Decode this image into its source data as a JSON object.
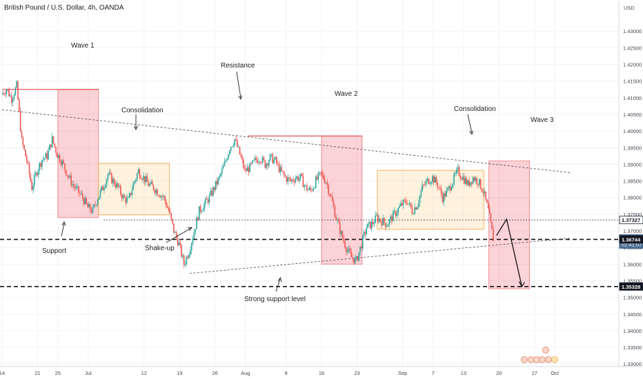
{
  "header": {
    "title": "British Pound / U.S. Dollar, 4h, OANDA",
    "currency": "USD"
  },
  "chart_data": {
    "type": "candlestick",
    "instrument": "British Pound / U.S. Dollar",
    "timeframe": "4h",
    "source": "OANDA",
    "ylim": [
      1.3275,
      1.4375
    ],
    "y_ticks": [
      "1.43000",
      "1.42500",
      "1.42000",
      "1.41500",
      "1.41000",
      "1.40500",
      "1.40000",
      "1.39500",
      "1.39000",
      "1.38500",
      "1.38000",
      "1.37500",
      "1.37000",
      "1.36500",
      "1.36000",
      "1.35500",
      "1.35000",
      "1.34500",
      "1.34000",
      "1.33500",
      "1.33000"
    ],
    "x_ticks": [
      {
        "label": "14",
        "day": 0
      },
      {
        "label": "21",
        "day": 7
      },
      {
        "label": "25",
        "day": 11
      },
      {
        "label": "Jul",
        "day": 17
      },
      {
        "label": "12",
        "day": 28
      },
      {
        "label": "19",
        "day": 35
      },
      {
        "label": "26",
        "day": 42
      },
      {
        "label": "Aug",
        "day": 48
      },
      {
        "label": "9",
        "day": 56
      },
      {
        "label": "16",
        "day": 63
      },
      {
        "label": "23",
        "day": 70
      },
      {
        "label": "Sep",
        "day": 79
      },
      {
        "label": "7",
        "day": 85
      },
      {
        "label": "13",
        "day": 91
      },
      {
        "label": "20",
        "day": 98
      },
      {
        "label": "27",
        "day": 105
      },
      {
        "label": "Oct",
        "day": 109
      }
    ],
    "price_labels": [
      {
        "value": "1.37327",
        "price": 1.37327,
        "color": "#ffffff",
        "text_color": "#131722",
        "border": "#131722"
      },
      {
        "value": "1.36763",
        "price": 1.36763,
        "color": "#4a6c8f",
        "text_color": "#ffffff",
        "subtext": "01:41:07"
      },
      {
        "value": "1.36744",
        "price": 1.36744,
        "color": "#131722",
        "text_color": "#ffffff"
      },
      {
        "value": "1.35328",
        "price": 1.35328,
        "color": "#131722",
        "text_color": "#ffffff"
      }
    ],
    "annotations": [
      {
        "text": "Wave 1"
      },
      {
        "text": "Resistance"
      },
      {
        "text": "Wave 2"
      },
      {
        "text": "Consolidation"
      },
      {
        "text": "Consolidation"
      },
      {
        "text": "Wave 3"
      },
      {
        "text": "Support"
      },
      {
        "text": "Shake-up"
      },
      {
        "text": "Strong support level"
      }
    ],
    "levels": [
      {
        "price": 1.37327,
        "style": "dotted"
      },
      {
        "price": 1.36744,
        "style": "dashed"
      },
      {
        "price": 1.35328,
        "style": "dashed"
      }
    ],
    "zones": [
      {
        "kind": "red",
        "day0": 11,
        "day1": 19,
        "p0": 1.374,
        "p1": 1.4125
      },
      {
        "kind": "orange",
        "day0": 19,
        "day1": 33,
        "p0": 1.3748,
        "p1": 1.3903
      },
      {
        "kind": "red",
        "day0": 63,
        "day1": 71,
        "p0": 1.36,
        "p1": 1.3985
      },
      {
        "kind": "orange",
        "day0": 74,
        "day1": 95,
        "p0": 1.3705,
        "p1": 1.3882
      },
      {
        "kind": "red",
        "day0": 96,
        "day1": 104,
        "p0": 1.3526,
        "p1": 1.391
      }
    ],
    "trendlines": [
      {
        "style": "dotted",
        "d0": 0,
        "p0": 1.4064,
        "d1": 112,
        "p1": 1.3875
      },
      {
        "style": "dotted",
        "d0": 37,
        "p0": 1.3572,
        "d1": 112,
        "p1": 1.3678
      }
    ],
    "projection": [
      {
        "day": 97.5,
        "price": 1.3686
      },
      {
        "day": 99.5,
        "price": 1.3735
      },
      {
        "day": 102.5,
        "price": 1.3533
      }
    ],
    "series": [
      {
        "day": 0,
        "close": 1.411
      },
      {
        "day": 1,
        "close": 1.4126
      },
      {
        "day": 2,
        "close": 1.4098
      },
      {
        "day": 3,
        "close": 1.4135
      },
      {
        "day": 4,
        "close": 1.397
      },
      {
        "day": 5,
        "close": 1.391
      },
      {
        "day": 6,
        "close": 1.383
      },
      {
        "day": 7,
        "close": 1.388
      },
      {
        "day": 8,
        "close": 1.3915
      },
      {
        "day": 9,
        "close": 1.3925
      },
      {
        "day": 10,
        "close": 1.3975
      },
      {
        "day": 11,
        "close": 1.393
      },
      {
        "day": 12,
        "close": 1.3905
      },
      {
        "day": 13,
        "close": 1.387
      },
      {
        "day": 14,
        "close": 1.384
      },
      {
        "day": 15,
        "close": 1.382
      },
      {
        "day": 16,
        "close": 1.38
      },
      {
        "day": 17,
        "close": 1.377
      },
      {
        "day": 18,
        "close": 1.376
      },
      {
        "day": 19,
        "close": 1.38
      },
      {
        "day": 20,
        "close": 1.383
      },
      {
        "day": 21,
        "close": 1.387
      },
      {
        "day": 22,
        "close": 1.385
      },
      {
        "day": 23,
        "close": 1.383
      },
      {
        "day": 24,
        "close": 1.38
      },
      {
        "day": 25,
        "close": 1.379
      },
      {
        "day": 26,
        "close": 1.384
      },
      {
        "day": 27,
        "close": 1.388
      },
      {
        "day": 28,
        "close": 1.386
      },
      {
        "day": 29,
        "close": 1.384
      },
      {
        "day": 30,
        "close": 1.383
      },
      {
        "day": 31,
        "close": 1.3815
      },
      {
        "day": 32,
        "close": 1.38
      },
      {
        "day": 33,
        "close": 1.376
      },
      {
        "day": 34,
        "close": 1.37
      },
      {
        "day": 35,
        "close": 1.366
      },
      {
        "day": 36,
        "close": 1.36
      },
      {
        "day": 37,
        "close": 1.364
      },
      {
        "day": 38,
        "close": 1.37
      },
      {
        "day": 39,
        "close": 1.376
      },
      {
        "day": 40,
        "close": 1.378
      },
      {
        "day": 41,
        "close": 1.38
      },
      {
        "day": 42,
        "close": 1.383
      },
      {
        "day": 43,
        "close": 1.386
      },
      {
        "day": 44,
        "close": 1.39
      },
      {
        "day": 45,
        "close": 1.395
      },
      {
        "day": 46,
        "close": 1.3975
      },
      {
        "day": 47,
        "close": 1.393
      },
      {
        "day": 48,
        "close": 1.388
      },
      {
        "day": 49,
        "close": 1.389
      },
      {
        "day": 50,
        "close": 1.391
      },
      {
        "day": 51,
        "close": 1.392
      },
      {
        "day": 52,
        "close": 1.39
      },
      {
        "day": 53,
        "close": 1.392
      },
      {
        "day": 54,
        "close": 1.391
      },
      {
        "day": 55,
        "close": 1.388
      },
      {
        "day": 56,
        "close": 1.386
      },
      {
        "day": 57,
        "close": 1.385
      },
      {
        "day": 58,
        "close": 1.386
      },
      {
        "day": 59,
        "close": 1.386
      },
      {
        "day": 60,
        "close": 1.383
      },
      {
        "day": 61,
        "close": 1.382
      },
      {
        "day": 62,
        "close": 1.385
      },
      {
        "day": 63,
        "close": 1.387
      },
      {
        "day": 64,
        "close": 1.385
      },
      {
        "day": 65,
        "close": 1.38
      },
      {
        "day": 66,
        "close": 1.374
      },
      {
        "day": 67,
        "close": 1.369
      },
      {
        "day": 68,
        "close": 1.365
      },
      {
        "day": 69,
        "close": 1.362
      },
      {
        "day": 70,
        "close": 1.361
      },
      {
        "day": 71,
        "close": 1.366
      },
      {
        "day": 72,
        "close": 1.371
      },
      {
        "day": 73,
        "close": 1.372
      },
      {
        "day": 74,
        "close": 1.374
      },
      {
        "day": 75,
        "close": 1.373
      },
      {
        "day": 76,
        "close": 1.372
      },
      {
        "day": 77,
        "close": 1.374
      },
      {
        "day": 78,
        "close": 1.376
      },
      {
        "day": 79,
        "close": 1.378
      },
      {
        "day": 80,
        "close": 1.379
      },
      {
        "day": 81,
        "close": 1.376
      },
      {
        "day": 82,
        "close": 1.378
      },
      {
        "day": 83,
        "close": 1.383
      },
      {
        "day": 84,
        "close": 1.385
      },
      {
        "day": 85,
        "close": 1.386
      },
      {
        "day": 86,
        "close": 1.384
      },
      {
        "day": 87,
        "close": 1.38
      },
      {
        "day": 88,
        "close": 1.382
      },
      {
        "day": 89,
        "close": 1.385
      },
      {
        "day": 90,
        "close": 1.388
      },
      {
        "day": 91,
        "close": 1.386
      },
      {
        "day": 92,
        "close": 1.384
      },
      {
        "day": 93,
        "close": 1.386
      },
      {
        "day": 94,
        "close": 1.385
      },
      {
        "day": 95,
        "close": 1.382
      },
      {
        "day": 96,
        "close": 1.376
      },
      {
        "day": 97,
        "close": 1.3676
      }
    ]
  }
}
